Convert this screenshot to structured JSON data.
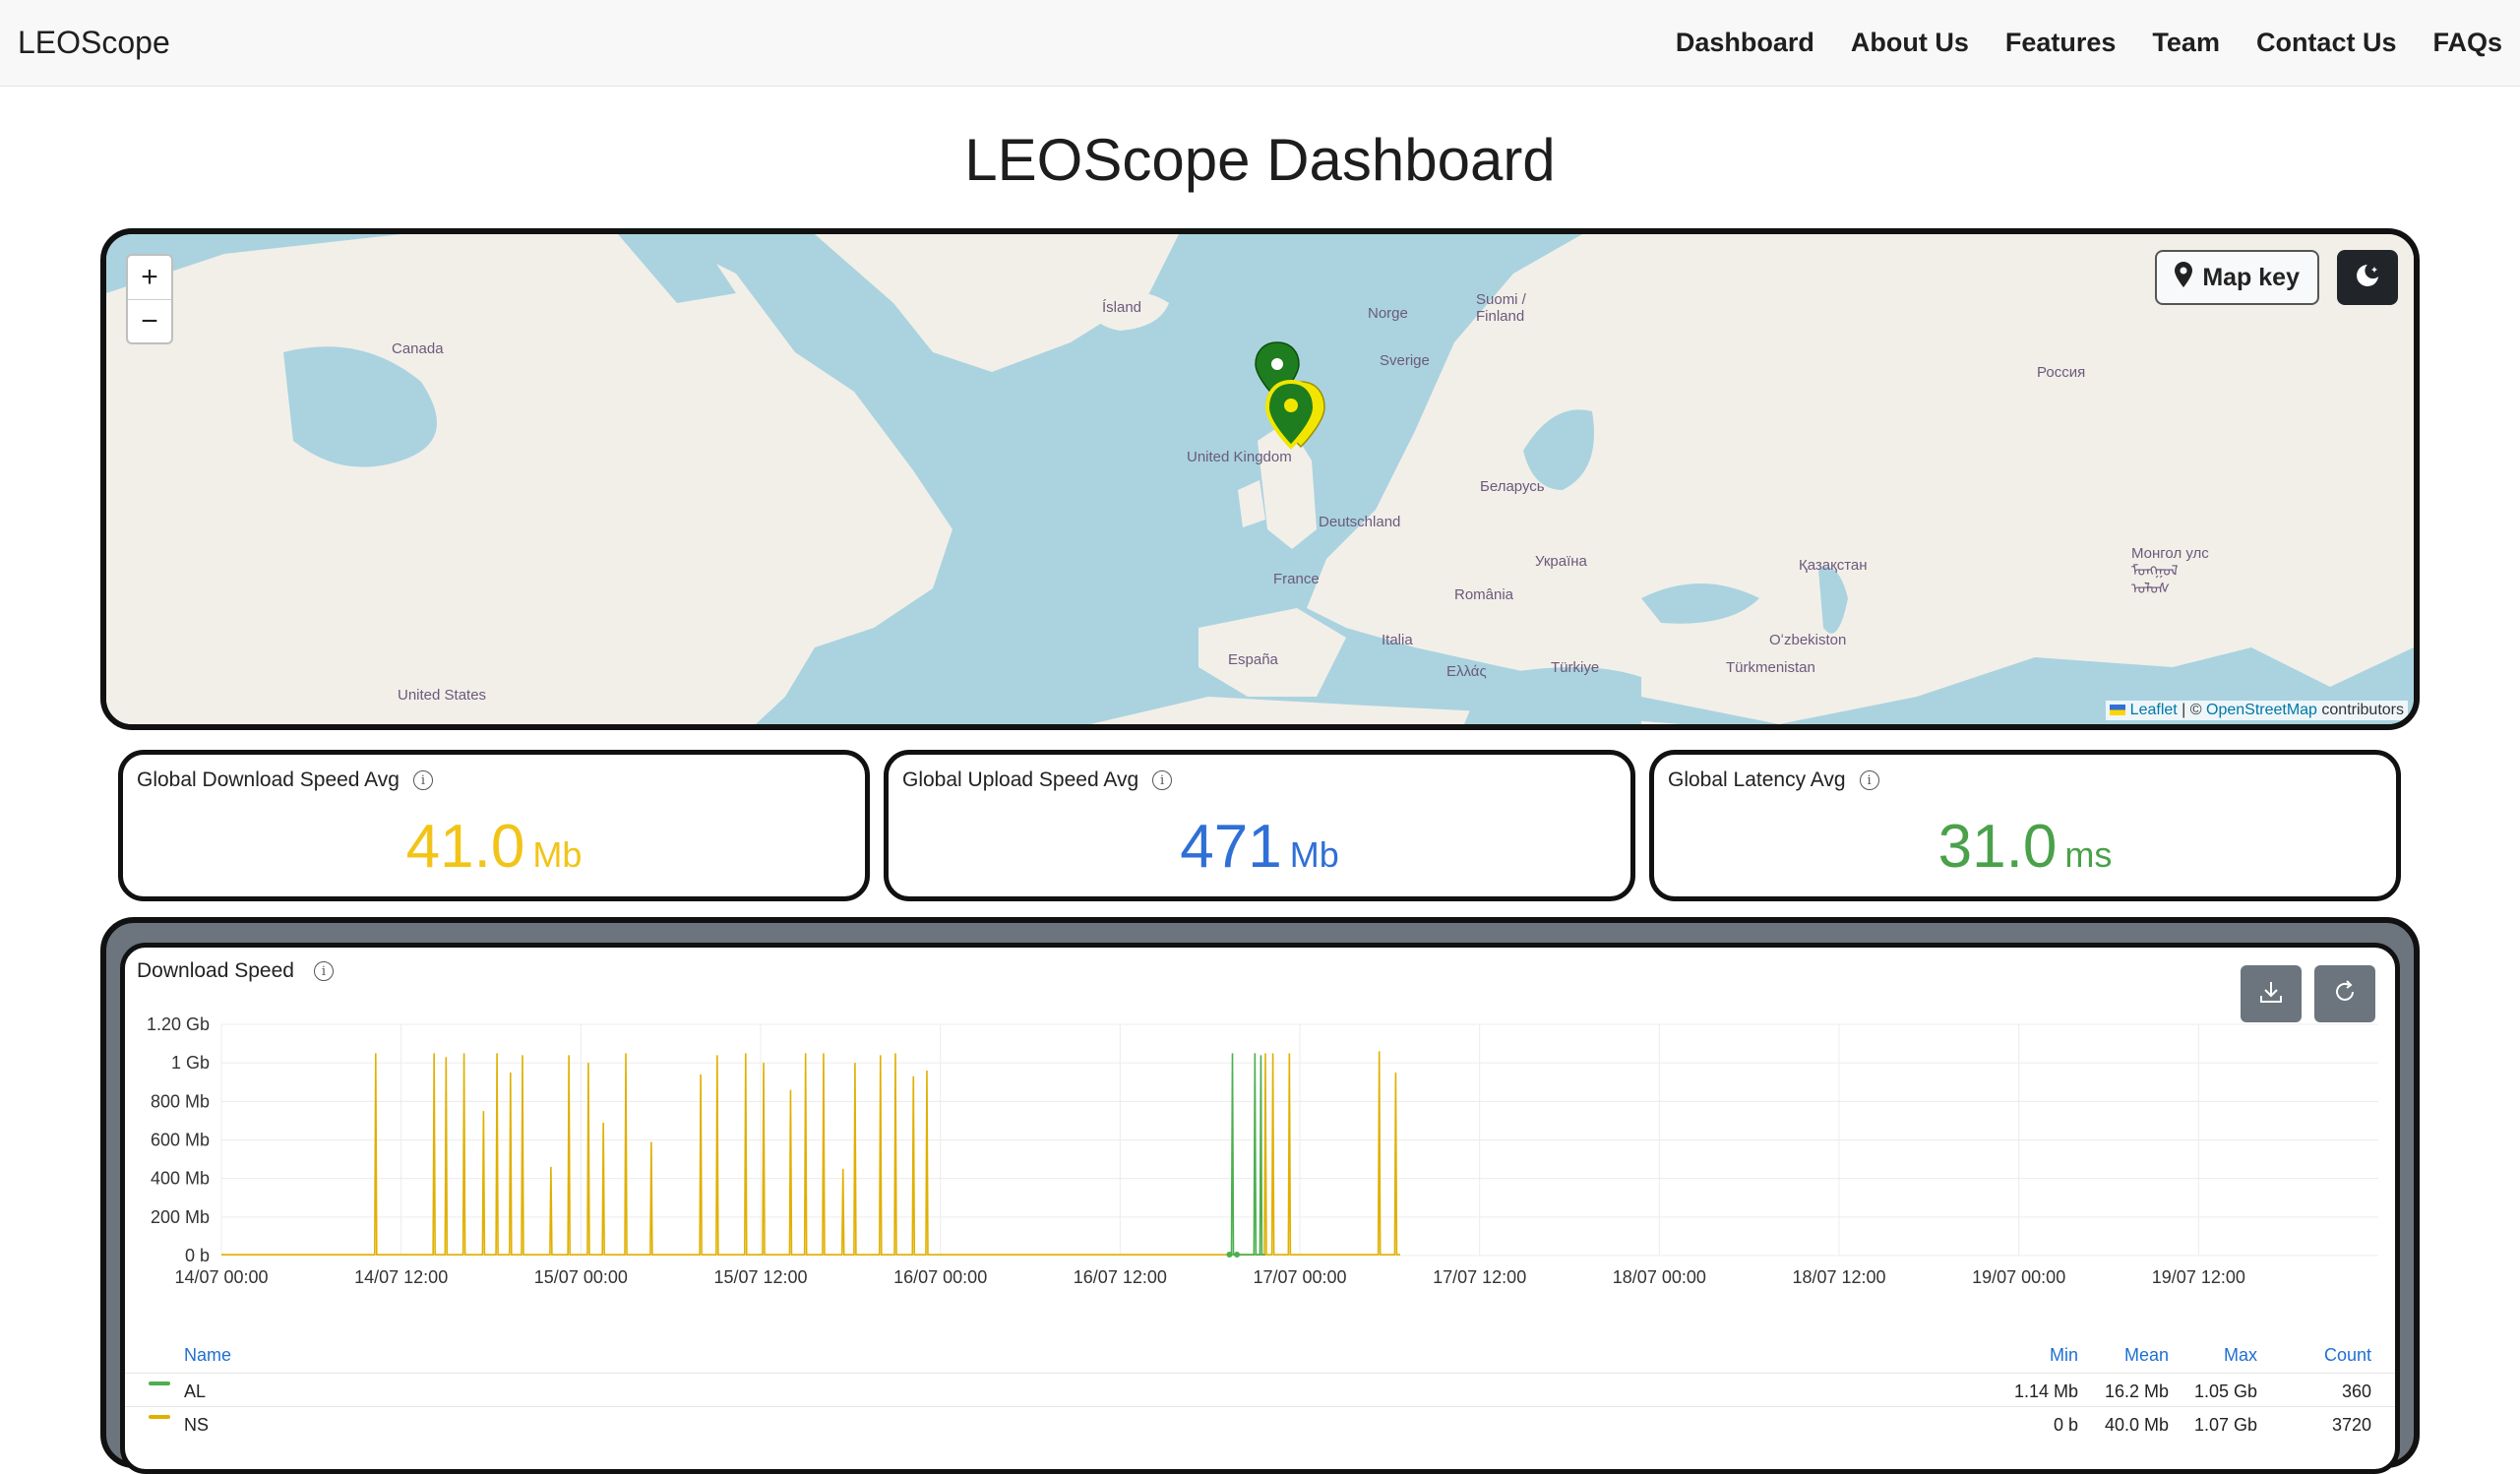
{
  "navbar": {
    "brand": "LEOScope",
    "links": [
      "Dashboard",
      "About Us",
      "Features",
      "Team",
      "Contact Us",
      "FAQs"
    ]
  },
  "page_title": "LEOScope Dashboard",
  "map": {
    "zoom_in": "+",
    "zoom_out": "−",
    "map_key_label": "Map key",
    "attribution_leaflet": "Leaflet",
    "attribution_sep": " | © ",
    "attribution_osm": "OpenStreetMap",
    "attribution_tail": " contributors",
    "labels": [
      "Canada",
      "Ísland",
      "Norge",
      "Suomi / Finland",
      "Sverige",
      "Россия",
      "United Kingdom",
      "Deutschland",
      "Беларусь",
      "Україна",
      "France",
      "România",
      "Қазақстан",
      "Монгол улс ᠮᠣᠩᠭᠣᠯ ᠤᠯᠤᠰ",
      "Oʻzbekiston",
      "España",
      "Italia",
      "Ελλάς",
      "Türkiye",
      "Türkmenistan",
      "United States"
    ],
    "marker_colors": {
      "land": "#f2efe9",
      "water": "#aad3df",
      "marker_green": "#1e7d1e",
      "marker_yellow": "#f2e600"
    }
  },
  "stats": [
    {
      "title": "Global Download Speed Avg",
      "value": "41.0",
      "unit": "Mb",
      "color": "#f2c418"
    },
    {
      "title": "Global Upload Speed Avg",
      "value": "471",
      "unit": "Mb",
      "color": "#2f6fd6"
    },
    {
      "title": "Global Latency Avg",
      "value": "31.0",
      "unit": "ms",
      "color": "#4aa14a"
    }
  ],
  "chart": {
    "title": "Download Speed",
    "legend_headers": {
      "name": "Name",
      "min": "Min",
      "mean": "Mean",
      "max": "Max",
      "count": "Count"
    },
    "legend_rows": [
      {
        "name": "AL",
        "min": "1.14 Mb",
        "mean": "16.2 Mb",
        "max": "1.05 Gb",
        "count": "360",
        "color": "#4caf50"
      },
      {
        "name": "NS",
        "min": "0 b",
        "mean": "40.0 Mb",
        "max": "1.07 Gb",
        "count": "3720",
        "color": "#e0b000"
      }
    ]
  },
  "chart_data": {
    "type": "line",
    "title": "Download Speed",
    "y_ticks": [
      "0 b",
      "200 Mb",
      "400 Mb",
      "600 Mb",
      "800 Mb",
      "1 Gb",
      "1.20 Gb"
    ],
    "ylim_mb": [
      0,
      1200
    ],
    "x_ticks": [
      "14/07 00:00",
      "14/07 12:00",
      "15/07 00:00",
      "15/07 12:00",
      "16/07 00:00",
      "16/07 12:00",
      "17/07 00:00",
      "17/07 12:00",
      "18/07 00:00",
      "18/07 12:00",
      "19/07 00:00",
      "19/07 12:00"
    ],
    "x_range_hours": [
      0,
      144
    ],
    "series": [
      {
        "name": "NS",
        "color": "#e0b000",
        "spikes_hours": [
          10.3,
          14.2,
          15.0,
          16.2,
          17.5,
          18.4,
          19.3,
          20.1,
          22.0,
          23.2,
          24.5,
          25.5,
          27.0,
          28.7,
          32.0,
          33.1,
          35.0,
          36.2,
          38.0,
          39.0,
          40.2,
          41.5,
          42.3,
          44.0,
          45.0,
          46.2,
          47.1,
          69.7,
          70.2,
          71.3,
          77.3,
          78.4
        ],
        "spikes_mb": [
          1050,
          1050,
          1030,
          1050,
          750,
          1050,
          950,
          1040,
          460,
          1040,
          1000,
          690,
          1050,
          590,
          940,
          1040,
          1050,
          1000,
          860,
          1050,
          1050,
          450,
          1000,
          1040,
          1050,
          930,
          960,
          1050,
          1050,
          1050,
          1060,
          950
        ],
        "baseline_mb": 5
      },
      {
        "name": "AL",
        "color": "#4caf50",
        "spikes_hours": [
          67.5,
          69.0,
          69.4
        ],
        "spikes_mb": [
          1050,
          1050,
          1040
        ],
        "baseline_mb": 5
      }
    ]
  }
}
